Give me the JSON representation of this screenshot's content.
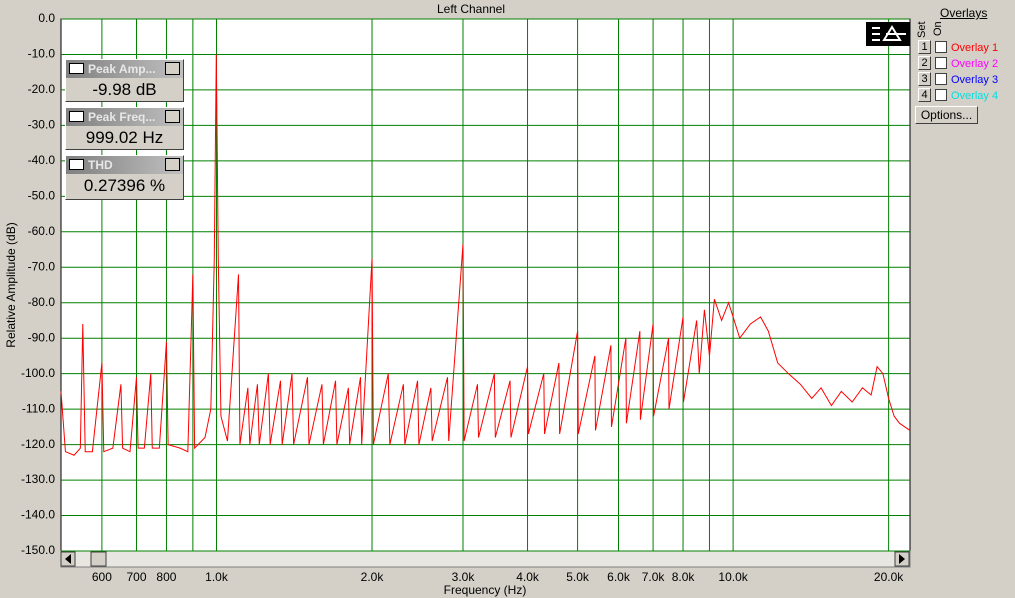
{
  "chart_data": {
    "type": "line",
    "title": "Left Channel",
    "x_label": "Frequency (Hz)",
    "y_label": "Relative Amplitude (dB)",
    "x_scale": "log",
    "grid": true,
    "color": "#ff0000",
    "grid_color": "#008000",
    "xlim": [
      500,
      22000
    ],
    "ylim": [
      -150,
      0
    ],
    "xticks": [
      600,
      700,
      800,
      {
        "value": 1000,
        "label": "1.0k"
      },
      {
        "value": 2000,
        "label": "2.0k"
      },
      {
        "value": 3000,
        "label": "3.0k"
      },
      {
        "value": 4000,
        "label": "4.0k"
      },
      {
        "value": 5000,
        "label": "5.0k"
      },
      {
        "value": 6000,
        "label": "6.0k"
      },
      {
        "value": 7000,
        "label": "7.0k"
      },
      {
        "value": 8000,
        "label": "8.0k"
      },
      {
        "value": 10000,
        "label": "10.0k"
      },
      {
        "value": 20000,
        "label": "20.0k"
      }
    ],
    "xminorticks": [
      900,
      9000
    ],
    "yticks": [
      {
        "value": 0,
        "label": "0.0"
      },
      {
        "value": -10,
        "label": "-10.0"
      },
      {
        "value": -20,
        "label": "-20.0"
      },
      {
        "value": -30,
        "label": "-30.0"
      },
      {
        "value": -40,
        "label": "-40.0"
      },
      {
        "value": -50,
        "label": "-50.0"
      },
      {
        "value": -60,
        "label": "-60.0"
      },
      {
        "value": -70,
        "label": "-70.0"
      },
      {
        "value": -80,
        "label": "-80.0"
      },
      {
        "value": -90,
        "label": "-90.0"
      },
      {
        "value": -100,
        "label": "-100.0"
      },
      {
        "value": -110,
        "label": "-110.0"
      },
      {
        "value": -120,
        "label": "-120.0"
      },
      {
        "value": -130,
        "label": "-130.0"
      },
      {
        "value": -140,
        "label": "-140.0"
      },
      {
        "value": -150,
        "label": "-150.0"
      }
    ],
    "x": [
      500,
      510,
      530,
      545,
      551,
      557,
      575,
      600,
      605,
      630,
      653,
      658,
      680,
      700,
      705,
      725,
      746,
      751,
      775,
      800,
      806,
      850,
      880,
      900,
      907,
      950,
      975,
      990,
      999,
      1008,
      1020,
      1050,
      1103,
      1110,
      1150,
      1160,
      1200,
      1210,
      1260,
      1270,
      1330,
      1340,
      1400,
      1410,
      1500,
      1510,
      1600,
      1610,
      1700,
      1710,
      1800,
      1810,
      1900,
      1910,
      2000,
      2012,
      2150,
      2165,
      2300,
      2315,
      2450,
      2465,
      2600,
      2615,
      2800,
      2815,
      3000,
      3015,
      3200,
      3215,
      3450,
      3465,
      3700,
      3715,
      4000,
      4015,
      4300,
      4315,
      4600,
      4615,
      5000,
      5015,
      5400,
      5415,
      5800,
      5815,
      6200,
      6215,
      6600,
      6615,
      7000,
      7015,
      7500,
      7515,
      8000,
      8015,
      8500,
      8600,
      8800,
      9000,
      9200,
      9500,
      9800,
      10000,
      10300,
      10800,
      11300,
      11700,
      12200,
      12800,
      13500,
      14200,
      14800,
      15500,
      16200,
      17000,
      17800,
      18500,
      19000,
      19500,
      20000,
      20500,
      21000,
      22000
    ],
    "values": [
      -105,
      -122,
      -123,
      -121,
      -86,
      -122,
      -122,
      -97,
      -122,
      -121,
      -103,
      -121,
      -122,
      -101,
      -121,
      -121,
      -100,
      -121,
      -121,
      -91,
      -120,
      -121,
      -122,
      -72,
      -121,
      -118,
      -110,
      -68,
      -9.98,
      -68,
      -112,
      -119,
      -72,
      -120,
      -104,
      -120,
      -103,
      -120,
      -100,
      -120,
      -102,
      -120,
      -100,
      -120,
      -101,
      -120,
      -103,
      -120,
      -102,
      -120,
      -104,
      -120,
      -101,
      -120,
      -67.6,
      -120,
      -100,
      -120,
      -103,
      -120,
      -102,
      -120,
      -104,
      -119,
      -101,
      -119,
      -63.5,
      -119,
      -103,
      -118,
      -100,
      -118,
      -102,
      -118,
      -98,
      -117,
      -100,
      -117,
      -97,
      -117,
      -88,
      -117,
      -95,
      -116,
      -92,
      -115,
      -90,
      -114,
      -88,
      -113,
      -86,
      -112,
      -90,
      -110,
      -84,
      -108,
      -85,
      -100,
      -82,
      -95,
      -79,
      -85,
      -80,
      -84,
      -90,
      -86,
      -84,
      -88,
      -97,
      -100,
      -103,
      -107,
      -104,
      -109,
      -105,
      -108,
      -104,
      -106,
      -98,
      -100,
      -107,
      -112,
      -114,
      -116
    ]
  },
  "readouts": [
    {
      "title": "Peak Amp...",
      "value": "-9.98 dB"
    },
    {
      "title": "Peak Freq...",
      "value": "999.02 Hz"
    },
    {
      "title": "THD",
      "value": "0.27396 %"
    }
  ],
  "overlays": {
    "title": "Overlays",
    "set": "Set",
    "on": "On",
    "options": "Options...",
    "items": [
      {
        "set": "1",
        "label": "Overlay 1",
        "color": "#ff0000"
      },
      {
        "set": "2",
        "label": "Overlay 2",
        "color": "#ff00ff"
      },
      {
        "set": "3",
        "label": "Overlay 3",
        "color": "#0000ff"
      },
      {
        "set": "4",
        "label": "Overlay 4",
        "color": "#00e0e0"
      }
    ]
  }
}
